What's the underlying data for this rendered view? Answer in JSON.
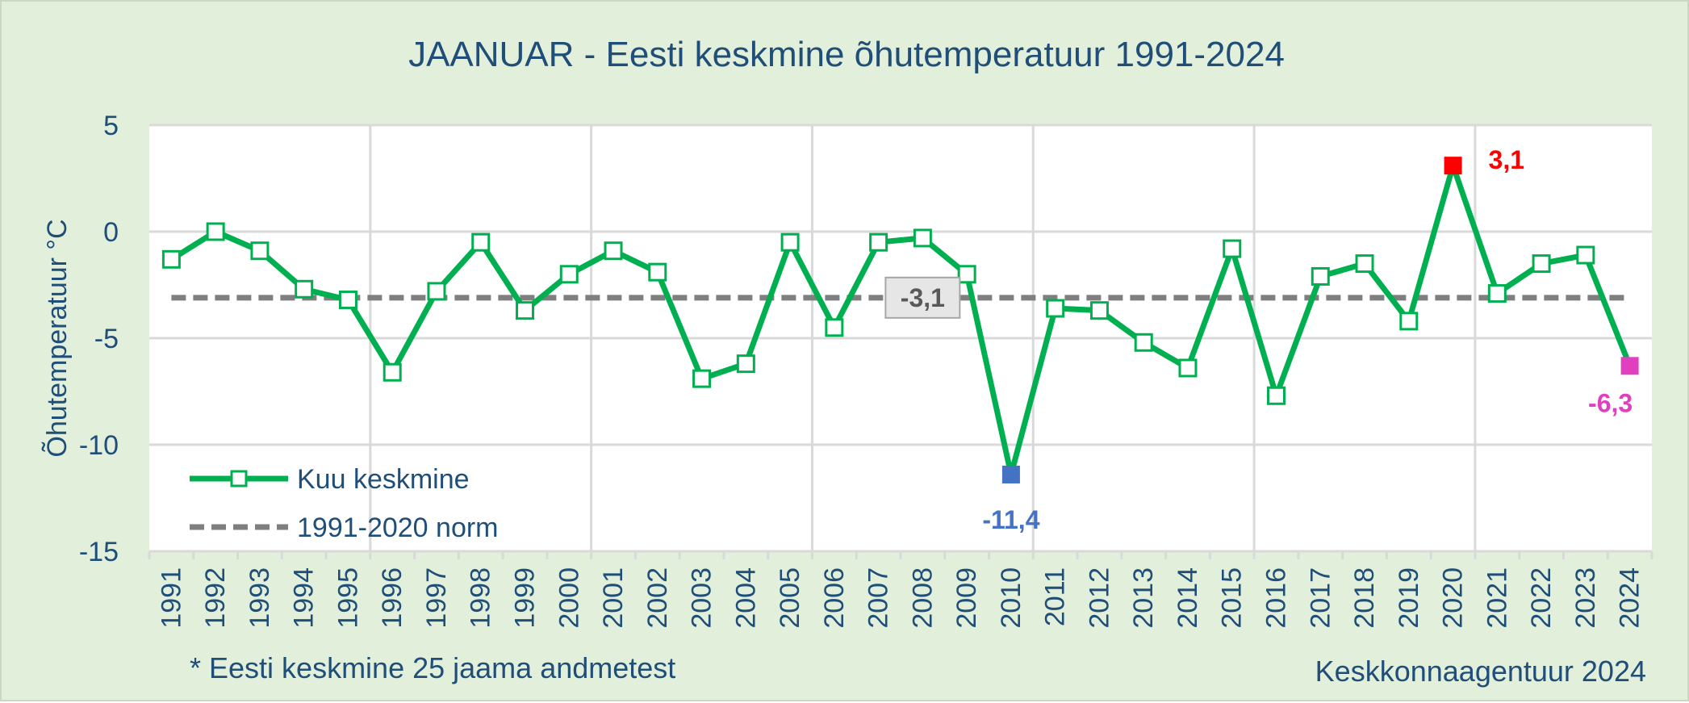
{
  "chart_data": {
    "type": "line",
    "title": "JAANUAR - Eesti keskmine õhutemperatuur 1991-2024",
    "ylabel": "Õhutemperatuur °C",
    "xlabel": "",
    "ylim": [
      -15,
      5
    ],
    "yticks": [
      "5",
      "0",
      "-5",
      "-10",
      "-15"
    ],
    "ytick_values": [
      5,
      0,
      -5,
      -10,
      -15
    ],
    "x": [
      "1991",
      "1992",
      "1993",
      "1994",
      "1995",
      "1996",
      "1997",
      "1998",
      "1999",
      "2000",
      "2001",
      "2002",
      "2003",
      "2004",
      "2005",
      "2006",
      "2007",
      "2008",
      "2009",
      "2010",
      "2011",
      "2012",
      "2013",
      "2014",
      "2015",
      "2016",
      "2017",
      "2018",
      "2019",
      "2020",
      "2021",
      "2022",
      "2023",
      "2024"
    ],
    "grid": true,
    "legend_position": "bottom-left",
    "series": [
      {
        "name": "Kuu keskmine",
        "color": "#00b050",
        "marker": "hollow-square",
        "values": [
          -1.3,
          0.0,
          -0.9,
          -2.7,
          -3.2,
          -6.6,
          -2.8,
          -0.5,
          -3.7,
          -2.0,
          -0.9,
          -1.9,
          -6.9,
          -6.2,
          -0.5,
          -4.5,
          -0.5,
          -0.3,
          -2.0,
          -11.4,
          -3.6,
          -3.7,
          -5.2,
          -6.4,
          -0.8,
          -7.7,
          -2.1,
          -1.5,
          -4.2,
          3.1,
          -2.9,
          -1.5,
          -1.1,
          -6.3
        ]
      },
      {
        "name": "1991-2020 norm",
        "color": "#7f7f7f",
        "style": "dashed",
        "value": -3.1
      }
    ],
    "annotations": [
      {
        "text": "-3,1",
        "year": "2008",
        "value": -3.1,
        "color": "#595959",
        "box": true
      },
      {
        "text": "-11,4",
        "year": "2010",
        "value": -11.4,
        "color": "#4472c4"
      },
      {
        "text": "3,1",
        "year": "2020",
        "value": 3.1,
        "color": "#ff0000"
      },
      {
        "text": "-6,3",
        "year": "2024",
        "value": -6.3,
        "color": "#e040c0"
      }
    ],
    "highlight_markers": [
      {
        "year": "2010",
        "color": "#4472c4"
      },
      {
        "year": "2020",
        "color": "#ff0000"
      },
      {
        "year": "2024",
        "color": "#e040c0"
      }
    ],
    "footnote": "* Eesti keskmine 25 jaama andmetest",
    "source": "Keskkonnaagentuur 2024"
  },
  "colors": {
    "background": "#e2efda",
    "plot_background": "#ffffff",
    "text": "#1f4e79",
    "gridline": "#d9d9d9"
  }
}
